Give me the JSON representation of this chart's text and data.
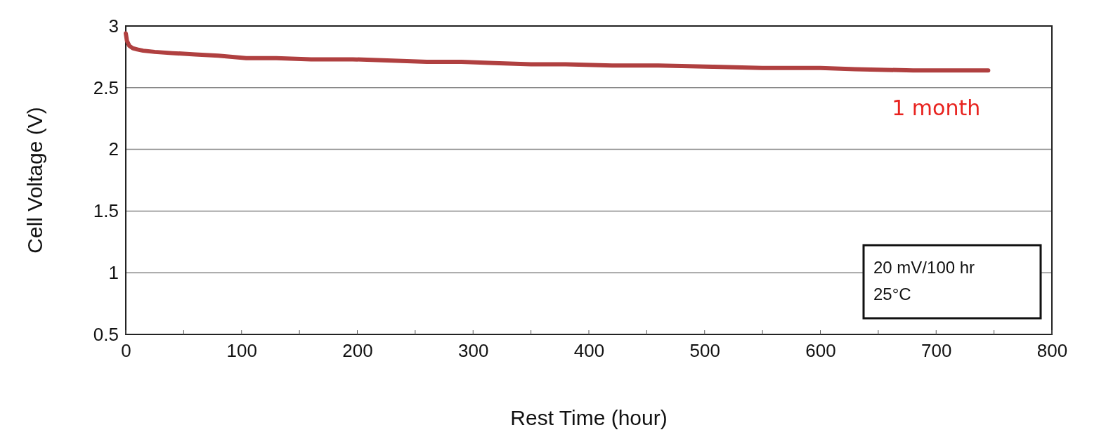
{
  "chart_data": {
    "type": "line",
    "xlabel": "Rest Time (hour)",
    "ylabel": "Cell Voltage (V)",
    "x": [
      0,
      1,
      3,
      6,
      10,
      15,
      25,
      40,
      60,
      80,
      104,
      130,
      160,
      196,
      230,
      260,
      290,
      318,
      350,
      380,
      420,
      460,
      507,
      550,
      600,
      630,
      680,
      720,
      745
    ],
    "series": [
      {
        "color": "#b04040",
        "values": [
          2.94,
          2.88,
          2.84,
          2.82,
          2.81,
          2.8,
          2.79,
          2.78,
          2.77,
          2.76,
          2.74,
          2.74,
          2.73,
          2.73,
          2.72,
          2.71,
          2.71,
          2.7,
          2.69,
          2.69,
          2.68,
          2.68,
          2.67,
          2.66,
          2.66,
          2.65,
          2.64,
          2.64,
          2.64
        ]
      }
    ],
    "xlim": [
      0,
      800
    ],
    "xticks": [
      0,
      {
        "value": 50,
        "label": null
      },
      100,
      {
        "value": 150,
        "label": null
      },
      200,
      {
        "value": 250,
        "label": null
      },
      300,
      {
        "value": 350,
        "label": null
      },
      400,
      {
        "value": 450,
        "label": null
      },
      500,
      {
        "value": 550,
        "label": null
      },
      600,
      {
        "value": 650,
        "label": null
      },
      700,
      {
        "value": 750,
        "label": null
      },
      800
    ],
    "ylim": [
      0.5,
      3
    ],
    "yticks": [
      0.5,
      1,
      1.5,
      2,
      2.5,
      3
    ],
    "grid": "y",
    "marker": "none",
    "line_style": "solid",
    "annotations": [
      "1 month",
      "20 mV/100 hr",
      "25°C"
    ]
  }
}
